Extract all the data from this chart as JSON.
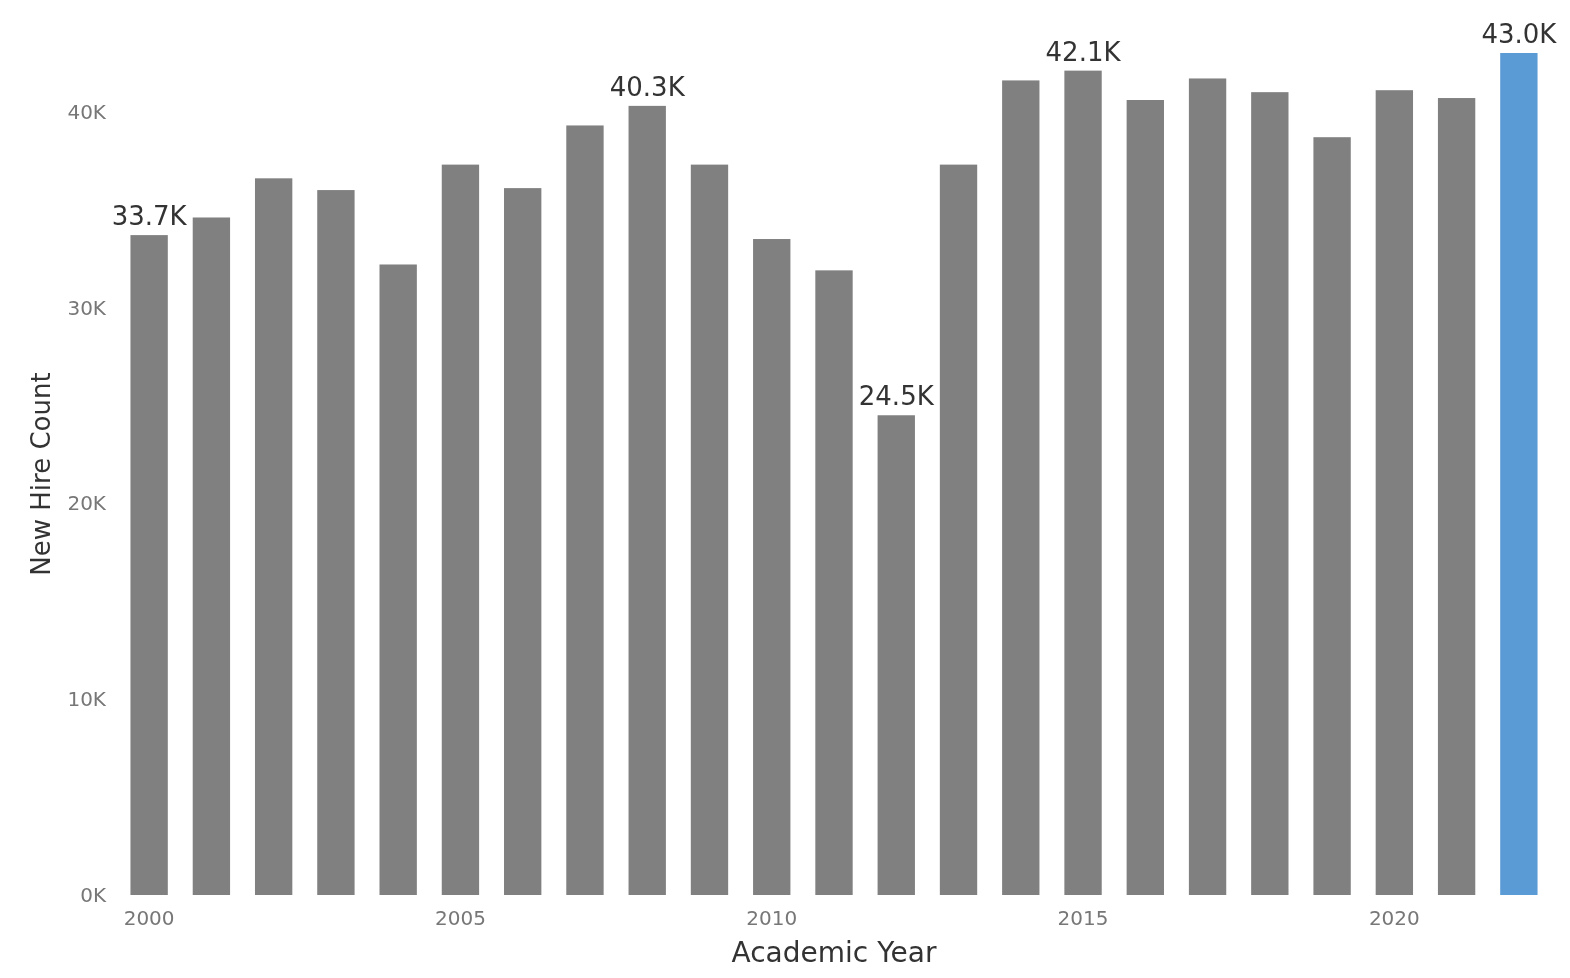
{
  "chart_data": {
    "type": "bar",
    "xlabel": "Academic Year",
    "ylabel": "New Hire Count",
    "categories": [
      "2000",
      null,
      null,
      null,
      null,
      "2005",
      null,
      null,
      null,
      null,
      "2010",
      null,
      null,
      null,
      null,
      "2015",
      null,
      null,
      null,
      null,
      "2020",
      null,
      null
    ],
    "values": [
      33700,
      34600,
      36600,
      36000,
      32200,
      37300,
      36100,
      39300,
      40300,
      37300,
      33500,
      31900,
      24500,
      37300,
      41600,
      42100,
      40600,
      41700,
      41000,
      38700,
      41100,
      40700,
      43000
    ],
    "value_labels": [
      "33.7K",
      null,
      null,
      null,
      null,
      null,
      null,
      null,
      "40.3K",
      null,
      null,
      null,
      "24.5K",
      null,
      null,
      "42.1K",
      null,
      null,
      null,
      null,
      null,
      null,
      "43.0K"
    ],
    "colors": [
      "#808080",
      "#808080",
      "#808080",
      "#808080",
      "#808080",
      "#808080",
      "#808080",
      "#808080",
      "#808080",
      "#808080",
      "#808080",
      "#808080",
      "#808080",
      "#808080",
      "#808080",
      "#808080",
      "#808080",
      "#808080",
      "#808080",
      "#808080",
      "#808080",
      "#808080",
      "#5b9bd5"
    ],
    "ylim": [
      0,
      43000
    ],
    "yticks": [
      {
        "value": 0,
        "label": "0K"
      },
      {
        "value": 10000,
        "label": "10K"
      },
      {
        "value": 20000,
        "label": "20K"
      },
      {
        "value": 30000,
        "label": "30K"
      },
      {
        "value": 40000,
        "label": "40K"
      }
    ]
  }
}
